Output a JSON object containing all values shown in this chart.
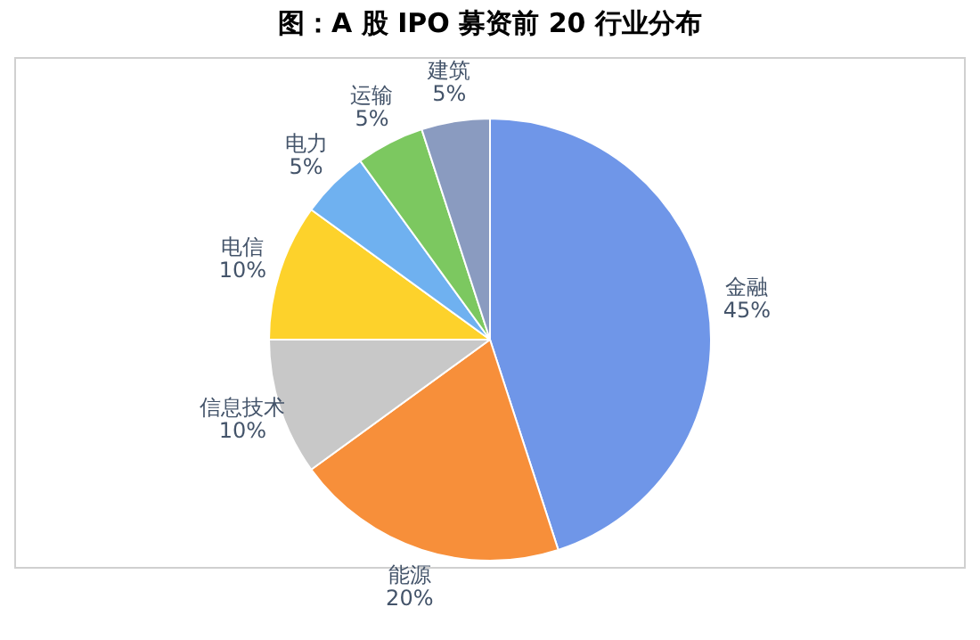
{
  "chart_data": {
    "type": "pie",
    "title": "图：A 股 IPO 募资前 20 行业分布",
    "categories": [
      "金融",
      "能源",
      "信息技术",
      "电信",
      "电力",
      "运输",
      "建筑"
    ],
    "values": [
      45,
      20,
      10,
      10,
      5,
      5,
      5
    ],
    "value_labels": [
      "45%",
      "20%",
      "10%",
      "10%",
      "5%",
      "5%",
      "5%"
    ],
    "colors": [
      "#6f96e8",
      "#f78f3a",
      "#c8c8c8",
      "#fdd22b",
      "#6fb1f0",
      "#7cc860",
      "#8a9bc0"
    ],
    "legend": false
  }
}
